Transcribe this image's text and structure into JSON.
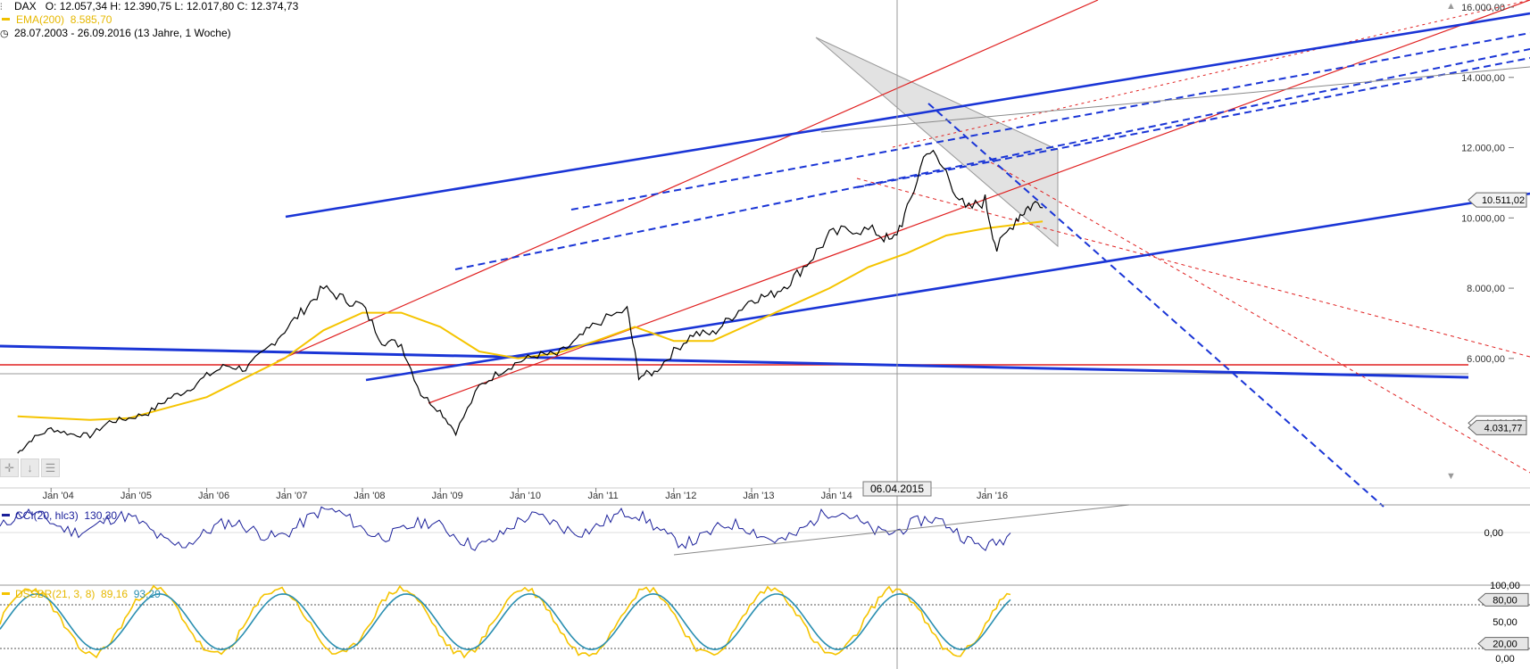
{
  "header": {
    "symbol": "DAX",
    "ohlc": "O: 12.057,34  H: 12.390,75  L: 12.017,80  C: 12.374,73",
    "ema_label": "EMA(200)",
    "ema_value": "8.585,70",
    "range": "28.07.2003 - 26.09.2016 (13 Jahre, 1 Woche)"
  },
  "colors": {
    "price": "#000000",
    "ema": "#f5c400",
    "trend_blue": "#1a35d6",
    "trend_red": "#e02020",
    "gray_line": "#8a8a8a",
    "cci_line": "#1a1f9a",
    "dss_yellow": "#f5c400",
    "dss_teal": "#2a8fb0"
  },
  "cursor_date": "06.04.2015",
  "cci": {
    "label": "CCI(20, hlc3)",
    "value": "130,30",
    "zero_label": "0,00"
  },
  "dss": {
    "label": "DSSBR(21, 3, 8)",
    "value1": "89,16",
    "value2": "93,29",
    "levels": [
      "100,00",
      "80,00",
      "50,00",
      "20,00",
      "0,00"
    ]
  },
  "chart_data": {
    "type": "line",
    "title": "DAX",
    "ylim": [
      3000,
      16000
    ],
    "x_ticks": [
      "Jan '04",
      "Jan '05",
      "Jan '06",
      "Jan '07",
      "Jan '08",
      "Jan '09",
      "Jan '10",
      "Jan '11",
      "Jan '12",
      "Jan '13",
      "Jan '14",
      "Jan '16"
    ],
    "y_ticks": [
      "16.000,00",
      "14.000,00",
      "12.000,00",
      "10.000,00",
      "8.000,00",
      "6.000,00"
    ],
    "price_tags": [
      {
        "label": "10.511,02",
        "value": 10511.02
      },
      {
        "label": "4.161,87",
        "value": 4161.87
      },
      {
        "label": "4.031,77",
        "value": 4031.77
      }
    ],
    "series": [
      {
        "name": "DAX",
        "x": [
          2003.57,
          2003.75,
          2004.0,
          2004.25,
          2004.5,
          2004.75,
          2005.0,
          2005.25,
          2005.5,
          2005.75,
          2006.0,
          2006.25,
          2006.5,
          2006.75,
          2007.0,
          2007.25,
          2007.5,
          2007.75,
          2008.0,
          2008.25,
          2008.5,
          2008.75,
          2009.0,
          2009.2,
          2009.5,
          2009.75,
          2010.0,
          2010.25,
          2010.5,
          2010.75,
          2011.0,
          2011.4,
          2011.55,
          2011.75,
          2012.0,
          2012.25,
          2012.5,
          2012.75,
          2013.0,
          2013.25,
          2013.5,
          2013.75,
          2014.0,
          2014.3,
          2014.6,
          2014.8,
          2015.0,
          2015.25,
          2015.5,
          2015.75,
          2016.0,
          2016.15,
          2016.4,
          2016.55,
          2016.74
        ],
        "values": [
          3300,
          3700,
          4000,
          3850,
          3800,
          4200,
          4300,
          4450,
          4850,
          5100,
          5500,
          5800,
          5700,
          6200,
          6800,
          7400,
          8000,
          7700,
          7500,
          6500,
          6400,
          5000,
          4500,
          3900,
          5200,
          5600,
          5900,
          6100,
          6100,
          6500,
          7000,
          7400,
          5500,
          5600,
          6200,
          6700,
          6700,
          7200,
          7700,
          7800,
          8200,
          8800,
          9500,
          9700,
          9600,
          9300,
          10200,
          12000,
          11300,
          10200,
          10500,
          9100,
          10000,
          10300,
          10500
        ]
      },
      {
        "name": "EMA(200)",
        "x": [
          2003.57,
          2004.5,
          2005.0,
          2006.0,
          2007.0,
          2007.5,
          2008.0,
          2008.5,
          2009.0,
          2009.5,
          2010.0,
          2010.5,
          2011.0,
          2011.5,
          2012.0,
          2012.5,
          2013.0,
          2013.5,
          2014.0,
          2014.5,
          2015.0,
          2015.5,
          2016.0,
          2016.74
        ],
        "values": [
          4350,
          4250,
          4300,
          4900,
          6000,
          6800,
          7300,
          7300,
          6900,
          6200,
          6000,
          6150,
          6500,
          6900,
          6500,
          6500,
          7000,
          7500,
          8000,
          8600,
          9000,
          9500,
          9700,
          9900
        ]
      }
    ]
  }
}
